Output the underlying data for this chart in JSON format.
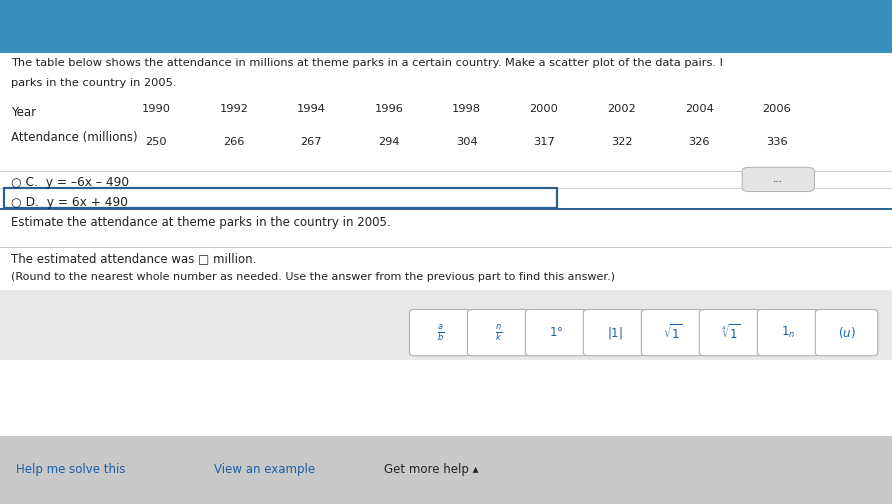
{
  "bg_color": "#f0f0f0",
  "content_bg": "#ffffff",
  "top_bar_color": "#3a8fc0",
  "header_line1": "The table below shows the attendance in millions at theme parks in a certain country. Make a scatter plot of the data pairs. I",
  "header_line2": "parks in the country in 2005.",
  "table_label_year": "Year",
  "table_label_attendance": "Attendance (millions)",
  "years": [
    "1990",
    "1992",
    "1994",
    "1996",
    "1998",
    "2000",
    "2002",
    "2004",
    "2006"
  ],
  "attendance": [
    "250",
    "266",
    "267",
    "294",
    "304",
    "317",
    "322",
    "326",
    "336"
  ],
  "option_c": "C.  y = –6x – 490",
  "option_d": "D.  y = 6x + 490",
  "dots_label": "...",
  "estimate_q": "Estimate the attendance at theme parks in the country in 2005.",
  "answer_line1": "The estimated attendance was □ million.",
  "answer_line2": "(Round to the nearest whole number as needed. Use the answer from the previous part to find this answer.)",
  "footer_left": "Help me solve this",
  "footer_mid": "View an example",
  "footer_right": "Get more help ▴",
  "divider_light": "#cccccc",
  "divider_blue": "#2a6090",
  "border_blue": "#2a6090",
  "text_dark": "#222222",
  "text_blue_link": "#1a5fa8",
  "btn_bg": "#e4e4e4",
  "btn_border": "#b0b0b0",
  "footer_bg": "#c8c8c8",
  "middle_bg": "#e8e8e8"
}
